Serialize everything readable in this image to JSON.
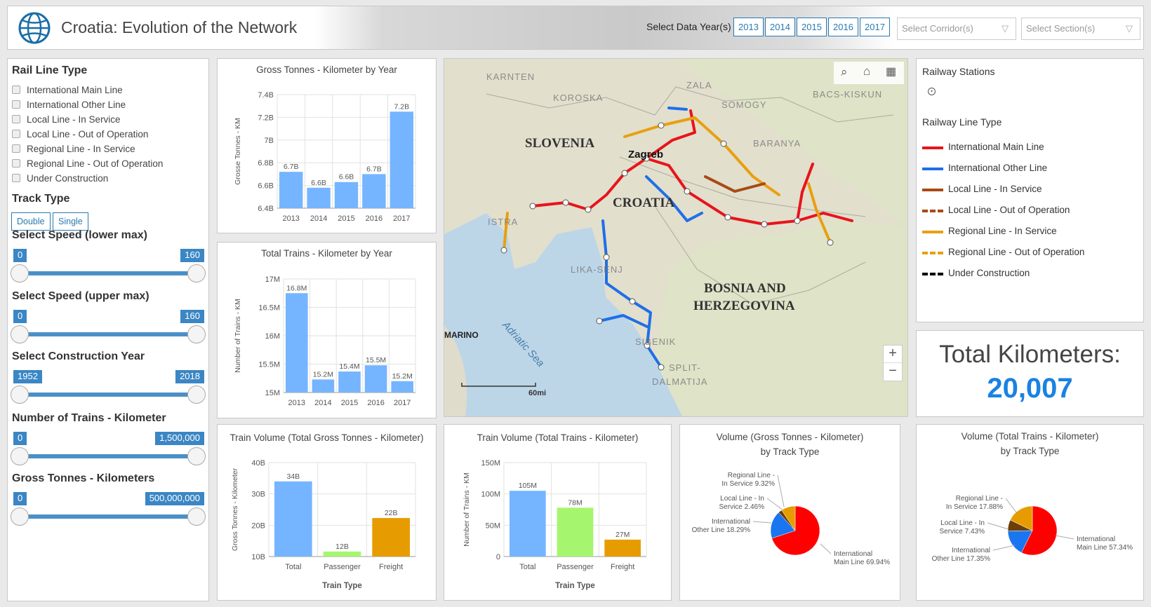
{
  "header": {
    "title": "Croatia: Evolution of the Network",
    "logo": "world-bank-globe-icon",
    "year_label": "Select Data Year(s)",
    "years": [
      "2013",
      "2014",
      "2015",
      "2016",
      "2017"
    ],
    "corridor_placeholder": "Select Corridor(s)",
    "section_placeholder": "Select Section(s)"
  },
  "filters": {
    "rail_line_type_title": "Rail Line Type",
    "rail_line_types": [
      "International Main Line",
      "International Other Line",
      "Local Line - In Service",
      "Local Line - Out of Operation",
      "Regional Line - In Service",
      "Regional Line - Out of Operation",
      "Under Construction"
    ],
    "track_type_title": "Track Type",
    "track_types": [
      "Double",
      "Single"
    ],
    "sliders": [
      {
        "title": "Select Speed (lower max)",
        "min": "0",
        "max": "160"
      },
      {
        "title": "Select Speed (upper max)",
        "min": "0",
        "max": "160"
      },
      {
        "title": "Select Construction Year",
        "min": "1952",
        "max": "2018"
      },
      {
        "title": "Number of Trains - Kilometer",
        "min": "0",
        "max": "1,500,000"
      },
      {
        "title": "Gross Tonnes - Kilometers",
        "min": "0",
        "max": "500,000,000"
      }
    ]
  },
  "map": {
    "labels": {
      "slovenia": "SLOVENIA",
      "croatia": "CROATIA",
      "bosnia1": "BOSNIA AND",
      "bosnia2": "HERZEGOVINA",
      "zagreb": "Zagreb",
      "sea": "Adriatic Sea",
      "marino": "MARINO",
      "karnten": "KARNTEN",
      "koroska": "KOROSKA",
      "zala": "ZALA",
      "somogy": "SOMOGY",
      "bacs": "BACS-KISKUN",
      "baranya": "BARANYA",
      "istra": "ISTRA",
      "lika": "LIKA-SENJ",
      "sibenik": "SIBENIK",
      "split": "SPLIT-",
      "dalmatija": "DALMATIJA",
      "scale": "60mi"
    },
    "zoom_in": "+",
    "zoom_out": "−"
  },
  "legend": {
    "stations_title": "Railway Stations",
    "line_type_title": "Railway Line Type",
    "items": [
      {
        "label": "International Main Line",
        "color": "#e8141b",
        "style": "solid"
      },
      {
        "label": "International Other Line",
        "color": "#1f6fe8",
        "style": "solid"
      },
      {
        "label": "Local Line - In Service",
        "color": "#a84a14",
        "style": "solid"
      },
      {
        "label": "Local Line - Out of Operation",
        "color": "#a84a14",
        "style": "dashed"
      },
      {
        "label": "Regional Line - In Service",
        "color": "#e8a010",
        "style": "solid"
      },
      {
        "label": "Regional Line - Out of Operation",
        "color": "#e8a010",
        "style": "dashed"
      },
      {
        "label": "Under Construction",
        "color": "#000000",
        "style": "dashed"
      }
    ]
  },
  "total": {
    "label": "Total Kilometers:",
    "value": "20,007",
    "color": "#1a82e2"
  },
  "chart_data": [
    {
      "type": "bar",
      "title": "Gross Tonnes - Kilometer by Year",
      "ylabel": "Grosse Tonnes - KM",
      "xlabel": "",
      "categories": [
        "2013",
        "2014",
        "2015",
        "2016",
        "2017"
      ],
      "values": [
        6.72,
        6.58,
        6.63,
        6.7,
        7.25
      ],
      "data_labels": [
        "6.7B",
        "6.6B",
        "6.6B",
        "6.7B",
        "7.2B"
      ],
      "ylim": [
        6.4,
        7.4
      ],
      "yticks": [
        "6.4B",
        "6.6B",
        "6.8B",
        "7B",
        "7.2B",
        "7.4B"
      ],
      "color": "#75b5ff",
      "grid": true
    },
    {
      "type": "bar",
      "title": "Total Trains - Kilometer by Year",
      "ylabel": "Number of Trains - KM",
      "xlabel": "",
      "categories": [
        "2013",
        "2014",
        "2015",
        "2016",
        "2017"
      ],
      "values": [
        16.75,
        15.23,
        15.37,
        15.48,
        15.2
      ],
      "data_labels": [
        "16.8M",
        "15.2M",
        "15.4M",
        "15.5M",
        "15.2M"
      ],
      "ylim": [
        15,
        17
      ],
      "yticks": [
        "15M",
        "15.5M",
        "16M",
        "16.5M",
        "17M"
      ],
      "color": "#75b5ff",
      "grid": true
    },
    {
      "type": "bar",
      "title": "Train Volume (Total Gross Tonnes - Kilometer)",
      "ylabel": "Gross Tonnes - Kilometer",
      "xlabel": "Train Type",
      "categories": [
        "Total",
        "Passenger",
        "Freight"
      ],
      "values": [
        34,
        11.6,
        22.3
      ],
      "data_labels": [
        "34B",
        "12B",
        "22B"
      ],
      "ylim": [
        10,
        40
      ],
      "yticks": [
        "10B",
        "20B",
        "30B",
        "40B"
      ],
      "colors": [
        "#75b5ff",
        "#a6f56e",
        "#e69c00"
      ],
      "grid": true
    },
    {
      "type": "bar",
      "title": "Train Volume (Total Trains - Kilometer)",
      "ylabel": "Number of Trains - KM",
      "xlabel": "Train Type",
      "categories": [
        "Total",
        "Passenger",
        "Freight"
      ],
      "values": [
        105,
        78,
        27
      ],
      "data_labels": [
        "105M",
        "78M",
        "27M"
      ],
      "ylim": [
        0,
        150
      ],
      "yticks": [
        "0",
        "50M",
        "100M",
        "150M"
      ],
      "colors": [
        "#75b5ff",
        "#a6f56e",
        "#e69c00"
      ],
      "grid": true
    },
    {
      "type": "pie",
      "title": "Volume (Gross Tonnes - Kilometer)",
      "title2": "by Track Type",
      "slices": [
        {
          "name": "International Main Line",
          "value": 69.94,
          "color": "#ff0000",
          "l1": "International",
          "l2": "Main Line 69.94%"
        },
        {
          "name": "International Other Line",
          "value": 18.29,
          "color": "#1a75f0",
          "l1": "International",
          "l2": "Other Line 18.29%"
        },
        {
          "name": "Local Line - In Service",
          "value": 2.46,
          "color": "#6b3e0a",
          "l1": "Local Line - In",
          "l2": "Service 2.46%"
        },
        {
          "name": "Regional Line - In Service",
          "value": 9.32,
          "color": "#e69c00",
          "l1": "Regional Line -",
          "l2": "In Service 9.32%"
        }
      ]
    },
    {
      "type": "pie",
      "title": "Volume (Total Trains - Kilometer)",
      "title2": "by Track Type",
      "slices": [
        {
          "name": "International Main Line",
          "value": 57.34,
          "color": "#ff0000",
          "l1": "International",
          "l2": "Main Line 57.34%"
        },
        {
          "name": "International Other Line",
          "value": 17.35,
          "color": "#1a75f0",
          "l1": "International",
          "l2": "Other Line 17.35%"
        },
        {
          "name": "Local Line - In Service",
          "value": 7.43,
          "color": "#6b3e0a",
          "l1": "Local Line - In",
          "l2": "Service 7.43%"
        },
        {
          "name": "Regional Line - In Service",
          "value": 17.88,
          "color": "#e69c00",
          "l1": "Regional Line -",
          "l2": "In Service 17.88%"
        }
      ]
    }
  ]
}
